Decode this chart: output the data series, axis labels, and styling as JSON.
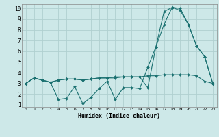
{
  "xlabel": "Humidex (Indice chaleur)",
  "bg_color": "#cde8e8",
  "grid_color": "#b0d0d0",
  "line_color": "#1a7070",
  "xlim": [
    -0.5,
    23.5
  ],
  "ylim": [
    0.8,
    10.4
  ],
  "yticks": [
    1,
    2,
    3,
    4,
    5,
    6,
    7,
    8,
    9,
    10
  ],
  "xticks": [
    0,
    1,
    2,
    3,
    4,
    5,
    6,
    7,
    8,
    9,
    10,
    11,
    12,
    13,
    14,
    15,
    16,
    17,
    18,
    19,
    20,
    21,
    22,
    23
  ],
  "line1_x": [
    0,
    1,
    2,
    3,
    4,
    5,
    6,
    7,
    8,
    9,
    10,
    11,
    12,
    13,
    14,
    15,
    16,
    17,
    18,
    19,
    20,
    21,
    22,
    23
  ],
  "line1_y": [
    3.0,
    3.5,
    3.3,
    3.1,
    3.3,
    3.4,
    3.4,
    3.3,
    3.4,
    3.5,
    3.5,
    3.6,
    3.6,
    3.6,
    3.6,
    3.7,
    3.7,
    3.8,
    3.8,
    3.8,
    3.8,
    3.7,
    3.2,
    3.0
  ],
  "line2_x": [
    0,
    1,
    2,
    3,
    4,
    5,
    6,
    7,
    8,
    9,
    10,
    11,
    12,
    13,
    14,
    15,
    16,
    17,
    18,
    19,
    20,
    21,
    22,
    23
  ],
  "line2_y": [
    3.0,
    3.5,
    3.3,
    3.1,
    1.5,
    1.6,
    2.7,
    1.1,
    1.7,
    2.5,
    3.2,
    1.5,
    2.6,
    2.6,
    2.5,
    4.5,
    6.4,
    9.7,
    10.1,
    10.0,
    8.5,
    6.5,
    5.5,
    3.0
  ],
  "line3_x": [
    0,
    1,
    2,
    3,
    4,
    5,
    6,
    7,
    8,
    9,
    10,
    11,
    12,
    13,
    14,
    15,
    16,
    17,
    18,
    19,
    20,
    21,
    22,
    23
  ],
  "line3_y": [
    3.0,
    3.5,
    3.3,
    3.1,
    3.3,
    3.4,
    3.4,
    3.3,
    3.4,
    3.5,
    3.5,
    3.5,
    3.6,
    3.6,
    3.6,
    2.6,
    6.4,
    8.5,
    10.1,
    9.8,
    8.5,
    6.5,
    5.5,
    3.0
  ]
}
